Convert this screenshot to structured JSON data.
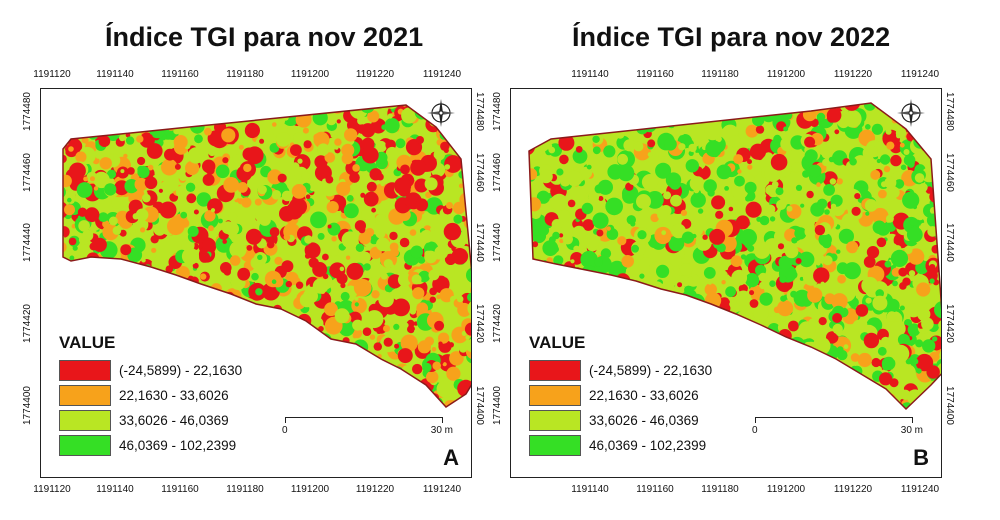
{
  "colors": {
    "class1": "#e8161a",
    "class2": "#f7a21b",
    "class3": "#b9e623",
    "class4": "#35df25",
    "outline": "#8b1a1a"
  },
  "panels": [
    {
      "title": "Índice TGI para nov 2021",
      "letter": "A",
      "x_ticks": [
        "1191120",
        "1191140",
        "1191160",
        "1191180",
        "1191200",
        "1191220",
        "1191240"
      ],
      "y_ticks": [
        "1774480",
        "1774460",
        "1774440",
        "1774420",
        "1774400"
      ],
      "legend_title": "VALUE",
      "legend": [
        {
          "label": "(-24,5899) - 22,1630",
          "color": "#e8161a"
        },
        {
          "label": "22,1630 - 33,6026",
          "color": "#f7a21b"
        },
        {
          "label": "33,6026 - 46,0369",
          "color": "#b9e623"
        },
        {
          "label": "46,0369 - 102,2399",
          "color": "#35df25"
        }
      ],
      "scale_start": "0",
      "scale_end": "30 m",
      "compass_icon": "compass-rose-icon",
      "class_shares": [
        0.3,
        0.25,
        0.25,
        0.2
      ]
    },
    {
      "title": "Índice TGI para nov 2022",
      "letter": "B",
      "x_ticks": [
        "1191140",
        "1191160",
        "1191180",
        "1191200",
        "1191220",
        "1191240"
      ],
      "y_ticks": [
        "1774480",
        "1774460",
        "1774440",
        "1774420",
        "1774400"
      ],
      "legend_title": "VALUE",
      "legend": [
        {
          "label": "(-24,5899) - 22,1630",
          "color": "#e8161a"
        },
        {
          "label": "22,1630 - 33,6026",
          "color": "#f7a21b"
        },
        {
          "label": "33,6026 - 46,0369",
          "color": "#b9e623"
        },
        {
          "label": "46,0369 - 102,2399",
          "color": "#35df25"
        }
      ],
      "scale_start": "0",
      "scale_end": "30 m",
      "compass_icon": "compass-rose-icon",
      "class_shares": [
        0.18,
        0.12,
        0.35,
        0.35
      ]
    }
  ]
}
